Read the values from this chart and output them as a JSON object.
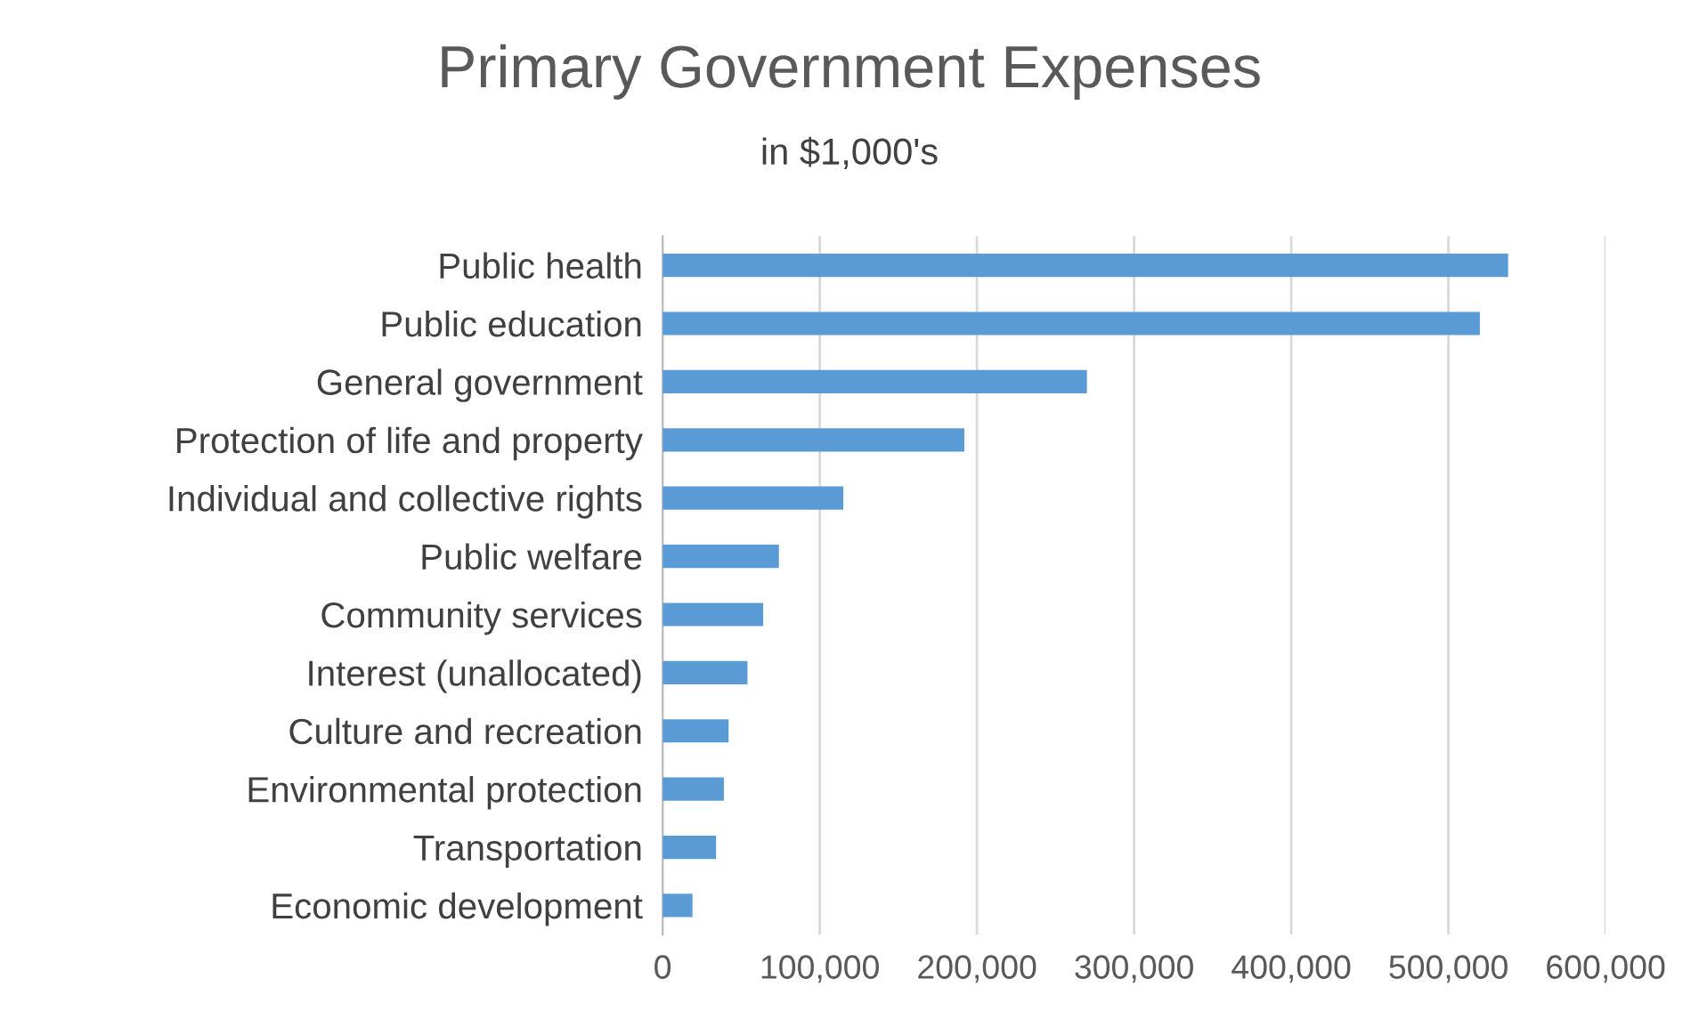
{
  "chart_data": {
    "type": "bar",
    "orientation": "horizontal",
    "title": "Primary Government Expenses",
    "subtitle": "in $1,000's",
    "categories": [
      "Public health",
      "Public education",
      "General government",
      "Protection of life and property",
      "Individual and collective rights",
      "Public welfare",
      "Community services",
      "Interest (unallocated)",
      "Culture and recreation",
      "Environmental protection",
      "Transportation",
      "Economic development"
    ],
    "values": [
      538000,
      520000,
      270000,
      192000,
      115000,
      74000,
      64000,
      54000,
      42000,
      39000,
      34000,
      19000
    ],
    "color": "#5b9bd5",
    "xlim": [
      0,
      600000
    ],
    "xticks": [
      {
        "value": 0,
        "label": "0"
      },
      {
        "value": 100000,
        "label": "100,000"
      },
      {
        "value": 200000,
        "label": "200,000"
      },
      {
        "value": 300000,
        "label": "300,000"
      },
      {
        "value": 400000,
        "label": "400,000"
      },
      {
        "value": 500000,
        "label": "500,000"
      },
      {
        "value": 600000,
        "label": "600,000"
      }
    ],
    "grid": "x",
    "legend": false
  }
}
